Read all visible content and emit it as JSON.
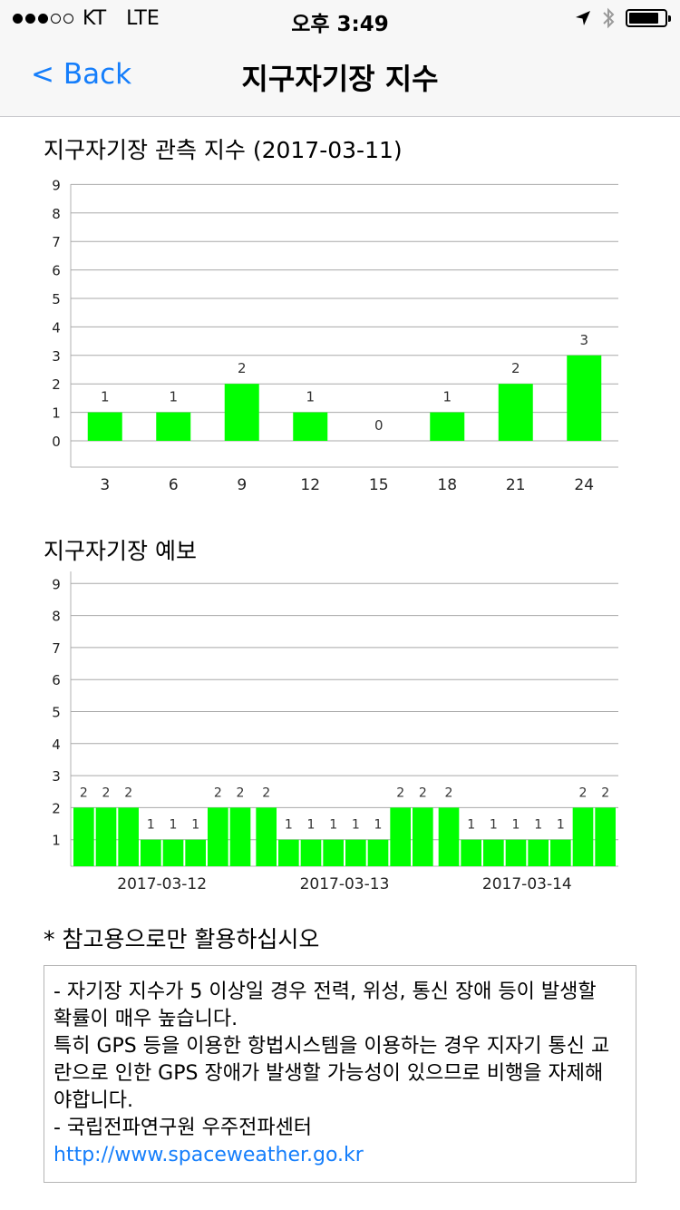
{
  "status_bar": {
    "carrier": "KT",
    "network": "LTE",
    "time": "오후 3:49",
    "signal_full": 3,
    "signal_total": 5,
    "battery_level": 0.85,
    "icons": [
      "location-arrow-icon",
      "bluetooth-icon",
      "battery-icon"
    ]
  },
  "nav": {
    "back_label": "< Back",
    "title": "지구자기장 지수"
  },
  "observed": {
    "title": "지구자기장 관측 지수 (2017-03-11)"
  },
  "forecast": {
    "title": "지구자기장 예보"
  },
  "note": "* 참고용으로만 활용하십시오",
  "info": {
    "lines": [
      "- 자기장 지수가 5 이상일 경우 전력, 위성, 통신 장애 등이 발생할",
      "확률이 매우 높습니다.",
      "특히 GPS 등을 이용한 항법시스템을 이용하는 경우 지자기 통신 교",
      "란으로 인한 GPS 장애가 발생할 가능성이 있으므로 비행을 자제해",
      "야합니다.",
      "- 국립전파연구원 우주전파센터"
    ],
    "link": "http://www.spaceweather.go.kr"
  },
  "chart_data": [
    {
      "type": "bar",
      "title": "지구자기장 관측 지수 (2017-03-11)",
      "categories": [
        "3",
        "6",
        "9",
        "12",
        "15",
        "18",
        "21",
        "24"
      ],
      "values": [
        1,
        1,
        2,
        1,
        0,
        1,
        2,
        3
      ],
      "ylim": [
        0,
        9
      ],
      "yticks": [
        0,
        1,
        2,
        3,
        4,
        5,
        6,
        7,
        8,
        9
      ],
      "grid": true,
      "data_labels": true,
      "bar_color": "#00ff00"
    },
    {
      "type": "bar",
      "title": "지구자기장 예보",
      "groups": [
        "2017-03-12",
        "2017-03-13",
        "2017-03-14"
      ],
      "series": [
        {
          "name": "2017-03-12",
          "values": [
            2,
            2,
            2,
            1,
            1,
            1,
            2,
            2
          ]
        },
        {
          "name": "2017-03-13",
          "values": [
            2,
            1,
            1,
            1,
            1,
            1,
            2,
            2
          ]
        },
        {
          "name": "2017-03-14",
          "values": [
            2,
            1,
            1,
            1,
            1,
            1,
            2,
            2
          ]
        }
      ],
      "ylim": [
        0,
        9
      ],
      "yticks": [
        1,
        2,
        3,
        4,
        5,
        6,
        7,
        8,
        9
      ],
      "grid": true,
      "data_labels": true,
      "bar_color": "#00ff00"
    }
  ]
}
